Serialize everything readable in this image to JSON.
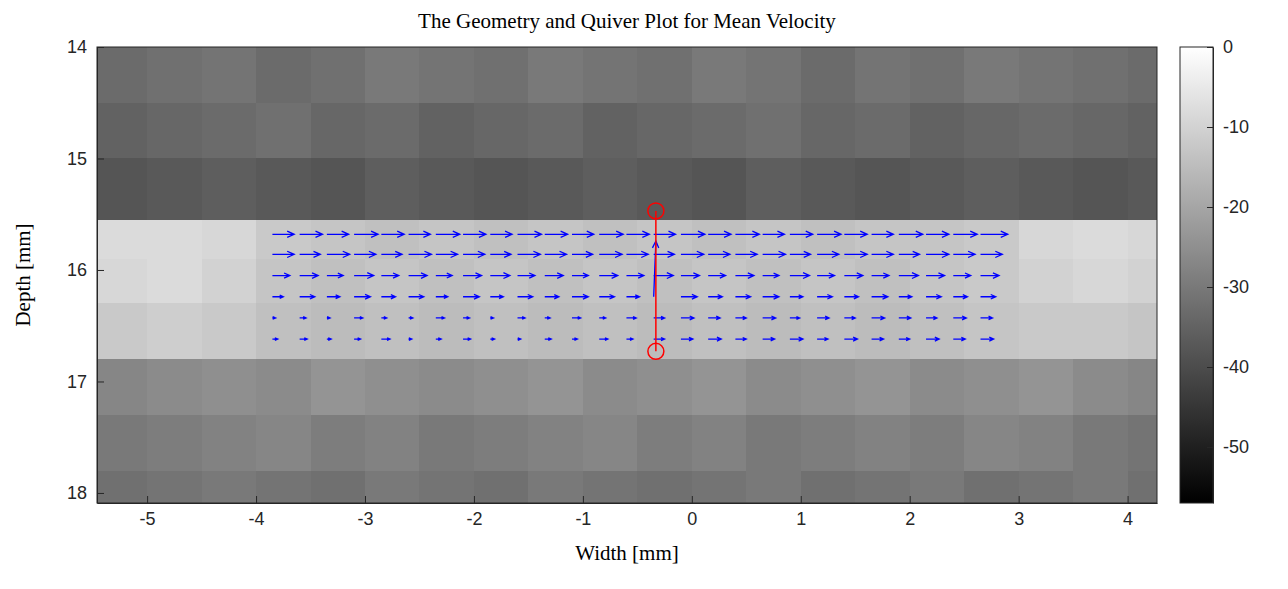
{
  "chart_data": {
    "type": "quiver",
    "title": "The Geometry and Quiver Plot for Mean Velocity",
    "x_label": "Width [mm]",
    "y_label": "Depth [mm]",
    "xlim": [
      -5.46,
      4.27
    ],
    "ylim": [
      14,
      18.09
    ],
    "xticks": [
      -5,
      -4,
      -3,
      -2,
      -1,
      0,
      1,
      2,
      3,
      4
    ],
    "yticks": [
      14,
      15,
      16,
      17,
      18
    ],
    "color": "#0000ff",
    "background": {
      "x_edges": [
        -5.46,
        -5,
        -4.5,
        -4,
        -3.5,
        -3,
        -2.5,
        -2,
        -1.5,
        -1,
        -0.5,
        0,
        0.5,
        1,
        1.5,
        2,
        2.5,
        3,
        3.5,
        4,
        4.27
      ],
      "y_edges": [
        14,
        14.5,
        15,
        15.55,
        15.9,
        16.3,
        16.8,
        17.3,
        17.8,
        18.09
      ],
      "cells": [
        [
          -33,
          -32,
          -31,
          -33,
          -32,
          -30,
          -31,
          -32,
          -30,
          -31,
          -32,
          -30,
          -31,
          -33,
          -31,
          -32,
          -30,
          -31,
          -32,
          -33
        ],
        [
          -35,
          -34,
          -33,
          -32,
          -34,
          -33,
          -35,
          -34,
          -33,
          -35,
          -34,
          -33,
          -32,
          -34,
          -33,
          -35,
          -34,
          -33,
          -34,
          -35
        ],
        [
          -38,
          -37,
          -36,
          -37,
          -38,
          -36,
          -37,
          -38,
          -37,
          -36,
          -37,
          -38,
          -36,
          -37,
          -38,
          -37,
          -36,
          -37,
          -38,
          -37
        ],
        [
          -8,
          -8,
          -9,
          -12,
          -13,
          -14,
          -13,
          -14,
          -13,
          -14,
          -13,
          -14,
          -13,
          -14,
          -13,
          -13,
          -12,
          -9,
          -8,
          -9
        ],
        [
          -9,
          -8,
          -10,
          -13,
          -14,
          -13,
          -14,
          -13,
          -14,
          -13,
          -14,
          -13,
          -14,
          -13,
          -14,
          -13,
          -12,
          -10,
          -9,
          -10
        ],
        [
          -12,
          -11,
          -12,
          -14,
          -15,
          -14,
          -15,
          -14,
          -15,
          -14,
          -15,
          -14,
          -15,
          -14,
          -15,
          -14,
          -13,
          -12,
          -12,
          -13
        ],
        [
          -27,
          -26,
          -25,
          -26,
          -24,
          -25,
          -26,
          -25,
          -24,
          -26,
          -25,
          -24,
          -26,
          -25,
          -24,
          -26,
          -25,
          -24,
          -26,
          -27
        ],
        [
          -30,
          -29,
          -28,
          -27,
          -29,
          -28,
          -30,
          -29,
          -28,
          -27,
          -29,
          -28,
          -30,
          -29,
          -28,
          -29,
          -27,
          -28,
          -30,
          -31
        ],
        [
          -32,
          -31,
          -30,
          -31,
          -32,
          -30,
          -31,
          -32,
          -30,
          -31,
          -32,
          -31,
          -30,
          -32,
          -31,
          -30,
          -32,
          -31,
          -30,
          -32
        ]
      ],
      "colorbar_range": [
        -57,
        0
      ],
      "colorbar_ticks": [
        0,
        -10,
        -20,
        -30,
        -40,
        -50
      ]
    },
    "quiver": {
      "x": [
        -3.85,
        -3.6,
        -3.35,
        -3.1,
        -2.85,
        -2.6,
        -2.35,
        -2.1,
        -1.85,
        -1.6,
        -1.35,
        -1.1,
        -0.85,
        -0.6,
        -0.35,
        -0.1,
        0.15,
        0.4,
        0.65,
        0.9,
        1.15,
        1.4,
        1.65,
        1.9,
        2.15,
        2.4,
        2.65
      ],
      "rows": [
        {
          "depth": 15.68,
          "u": [
            0.2,
            0.21,
            0.2,
            0.22,
            0.21,
            0.2,
            0.22,
            0.21,
            0.2,
            0.22,
            0.21,
            0.2,
            0.22,
            0.21,
            0.2,
            0.22,
            0.21,
            0.22,
            0.2,
            0.21,
            0.22,
            0.21,
            0.2,
            0.22,
            0.21,
            0.22,
            0.25
          ],
          "v": [
            0,
            0,
            0,
            0,
            0,
            0,
            0,
            0,
            0,
            0,
            0,
            0,
            0,
            0,
            0,
            0,
            0,
            0,
            0,
            0,
            0,
            0,
            0,
            0,
            0,
            0,
            0
          ]
        },
        {
          "depth": 15.86,
          "u": [
            0.2,
            0.19,
            0.21,
            0.2,
            0.19,
            0.21,
            0.2,
            0.2,
            0.19,
            0.21,
            0.2,
            0.19,
            0.21,
            0.2,
            0.19,
            0.21,
            0.2,
            0.2,
            0.21,
            0.19,
            0.2,
            0.21,
            0.2,
            0.19,
            0.21,
            0.2,
            0.2
          ],
          "v": [
            0,
            0,
            0,
            0,
            0,
            0,
            0,
            0,
            0,
            0,
            0,
            0,
            0,
            0,
            0,
            0,
            0,
            0,
            0,
            0,
            0,
            0,
            0,
            0,
            0,
            0,
            0
          ]
        },
        {
          "depth": 16.05,
          "u": [
            0.16,
            0.17,
            0.15,
            0.18,
            0.16,
            0.17,
            0.15,
            0.17,
            0.18,
            0.16,
            0.17,
            0.15,
            0.17,
            0.16,
            0.18,
            0.17,
            0.16,
            0.17,
            0.15,
            0.18,
            0.16,
            0.17,
            0.16,
            0.18,
            0.17,
            0.16,
            0.17
          ],
          "v": [
            0,
            0,
            0,
            0,
            0,
            0,
            0,
            0,
            0,
            0,
            0,
            0,
            0,
            0,
            0,
            0,
            0,
            0,
            0,
            0,
            0,
            0,
            0,
            0,
            0,
            0,
            0
          ]
        },
        {
          "depth": 16.24,
          "u": [
            0.1,
            0.14,
            0.12,
            0.15,
            0.13,
            0.14,
            0.11,
            0.15,
            0.12,
            0.14,
            0.13,
            0.15,
            0.14,
            0.12,
            0.02,
            0.15,
            0.13,
            0.14,
            0.15,
            0.12,
            0.14,
            0.13,
            0.15,
            0.12,
            0.14,
            0.13,
            0.14
          ],
          "v": [
            0,
            0,
            0,
            0,
            0,
            0,
            0,
            0,
            0,
            0,
            0,
            0,
            0,
            0,
            -0.5,
            0,
            0,
            0,
            0,
            0,
            0,
            0,
            0,
            0,
            0,
            0,
            0
          ]
        },
        {
          "depth": 16.43,
          "u": [
            0.03,
            0.06,
            0.03,
            0.08,
            0.05,
            0.04,
            0.08,
            0.06,
            0.03,
            0.07,
            0.05,
            0.08,
            0.06,
            0.09,
            0.1,
            0.12,
            0.11,
            0.1,
            0.12,
            0.09,
            0.11,
            0.1,
            0.12,
            0.11,
            0.1,
            0.12,
            0.11
          ],
          "v": [
            0,
            0,
            0,
            0,
            0,
            0,
            0,
            0,
            0,
            0,
            0,
            0,
            0,
            0,
            0,
            0,
            0,
            0,
            0,
            0,
            0,
            0,
            0,
            0,
            0,
            0,
            0
          ]
        },
        {
          "depth": 16.62,
          "u": [
            0.05,
            0.07,
            0.04,
            0.06,
            0.08,
            0.03,
            0.05,
            0.07,
            0.04,
            0.03,
            0.06,
            0.05,
            0.08,
            0.06,
            0.1,
            0.11,
            0.12,
            0.1,
            0.11,
            0.12,
            0.1,
            0.12,
            0.11,
            0.1,
            0.12,
            0.11,
            0.12
          ],
          "v": [
            0,
            0,
            0,
            0,
            0,
            0,
            0,
            0,
            0,
            0,
            0,
            0,
            0,
            0,
            0,
            0,
            0,
            0,
            0,
            0,
            0,
            0,
            0,
            0,
            0,
            0,
            0
          ]
        }
      ]
    },
    "profile_line": {
      "x": [
        -0.33,
        -0.33
      ],
      "y": [
        15.47,
        16.73
      ],
      "color": "#ff0000"
    }
  }
}
